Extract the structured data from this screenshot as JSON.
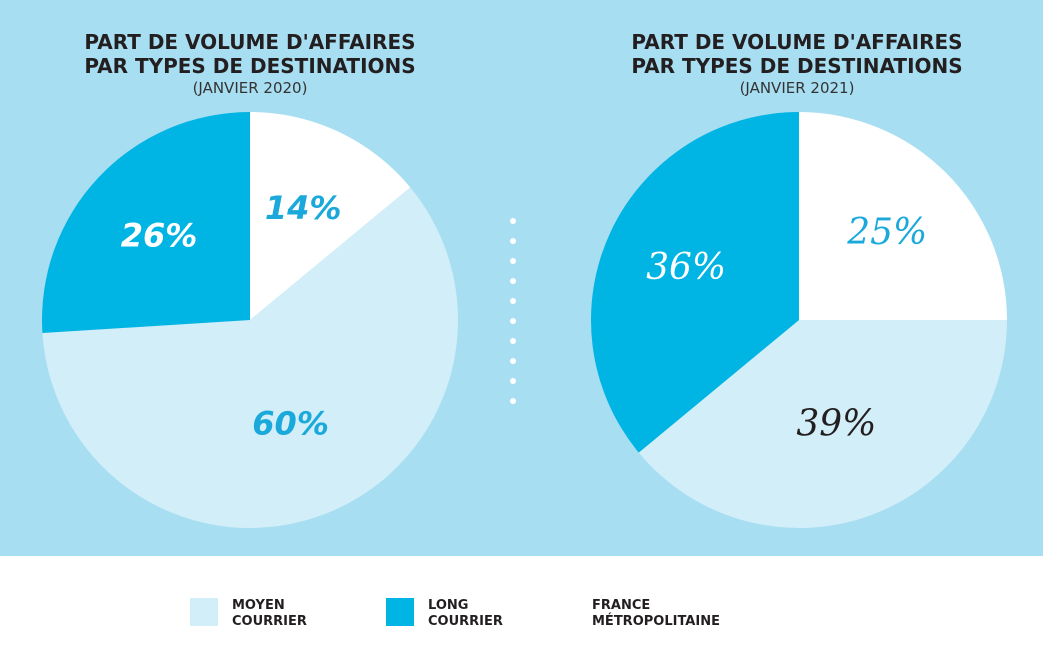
{
  "colors": {
    "background": "#a8def2",
    "moyen_courrier": "#d2eef9",
    "long_courrier": "#00b4e3",
    "france_metropolitaine": "#ffffff"
  },
  "chart_data": [
    {
      "type": "pie",
      "title": "PART DE VOLUME D'AFFAIRES\nPAR TYPES DE DESTINATIONS",
      "subtitle": "(JANVIER 2020)",
      "slices": [
        {
          "name": "FRANCE MÉTROPOLITAINE",
          "value": 14,
          "label": "14%",
          "color": "#ffffff",
          "label_color": "#1aa9da"
        },
        {
          "name": "MOYEN COURRIER",
          "value": 60,
          "label": "60%",
          "color": "#d2eef9",
          "label_color": "#1aa9da"
        },
        {
          "name": "LONG COURRIER",
          "value": 26,
          "label": "26%",
          "color": "#00b4e3",
          "label_color": "#ffffff"
        }
      ]
    },
    {
      "type": "pie",
      "title": "PART DE VOLUME D'AFFAIRES\nPAR TYPES DE DESTINATIONS",
      "subtitle": "(JANVIER 2021)",
      "slices": [
        {
          "name": "FRANCE MÉTROPOLITAINE",
          "value": 25,
          "label": "25%",
          "color": "#ffffff",
          "label_color": "#1aa9da"
        },
        {
          "name": "MOYEN COURRIER",
          "value": 39,
          "label": "39%",
          "color": "#d2eef9",
          "label_color": "#231f20"
        },
        {
          "name": "LONG COURRIER",
          "value": 36,
          "label": "36%",
          "color": "#00b4e3",
          "label_color": "#ffffff"
        }
      ]
    }
  ],
  "legend": [
    {
      "line1": "MOYEN",
      "line2": "COURRIER",
      "color": "#d2eef9"
    },
    {
      "line1": "LONG",
      "line2": "COURRIER",
      "color": "#00b4e3"
    },
    {
      "line1": "FRANCE",
      "line2": "MÉTROPOLITAINE",
      "color": ""
    }
  ]
}
